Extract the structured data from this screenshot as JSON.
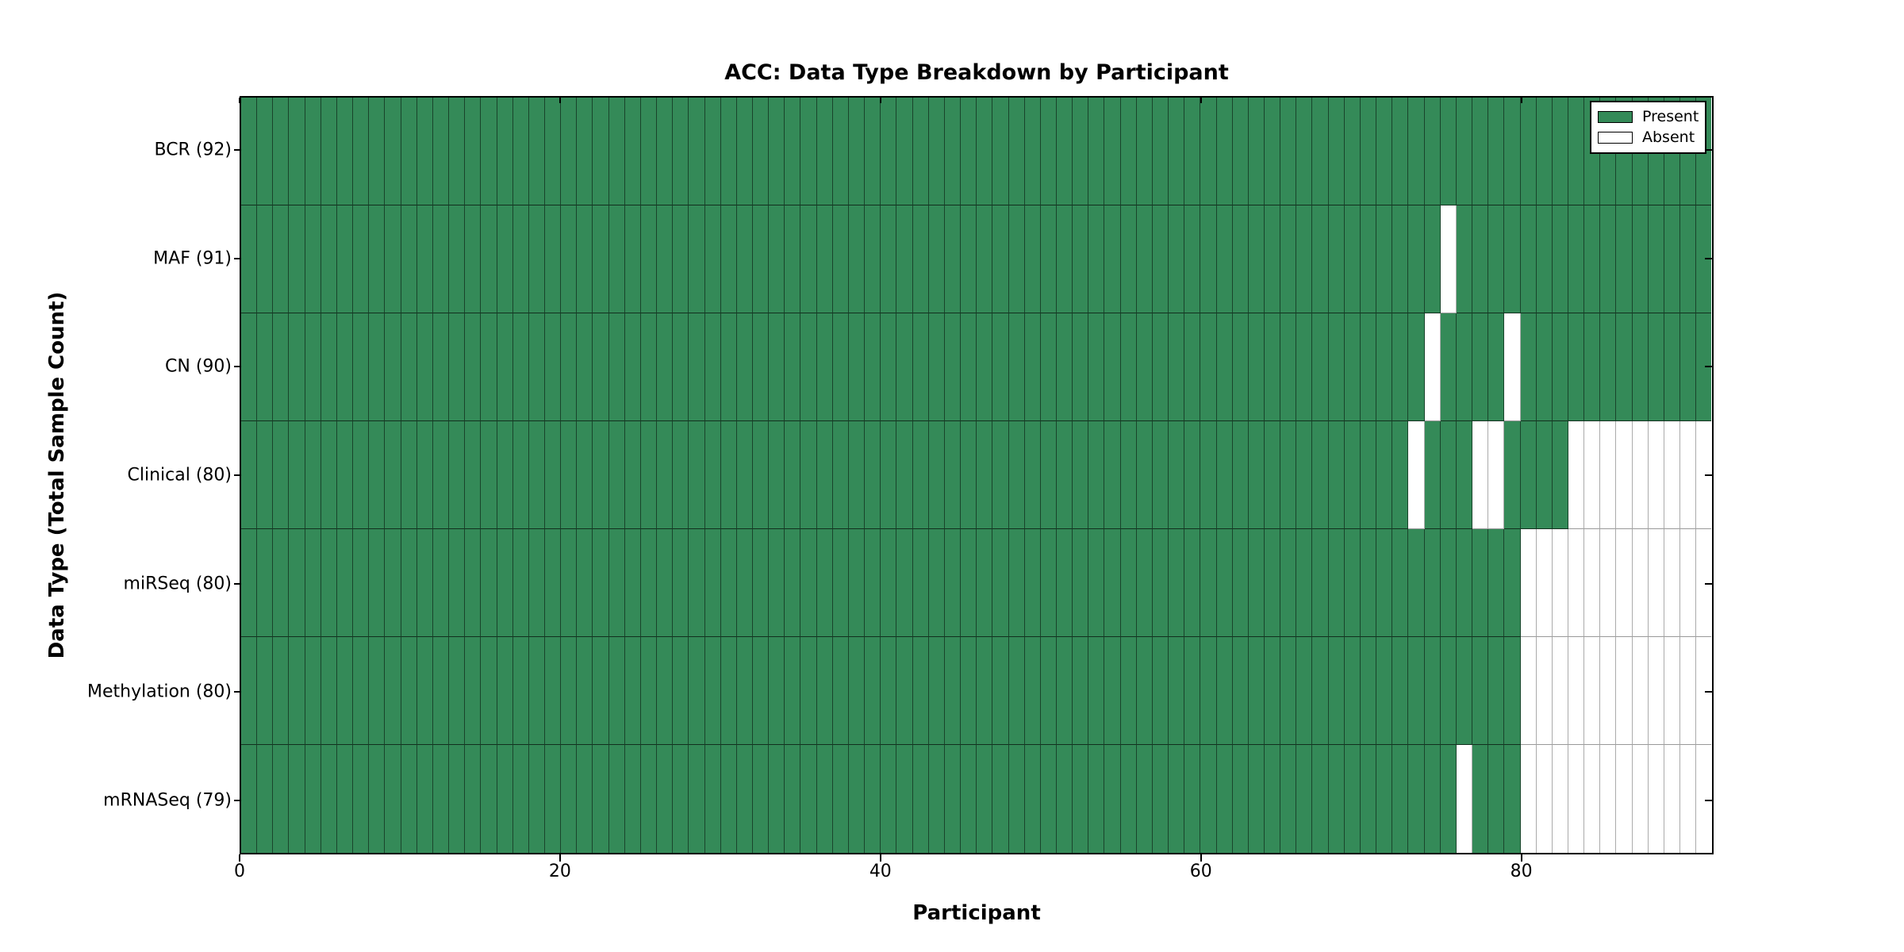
{
  "title": "ACC: Data Type Breakdown by Participant",
  "x_axis": {
    "label": "Participant",
    "tick_values": [
      0,
      20,
      40,
      60,
      80
    ],
    "tick_labels": [
      "0",
      "20",
      "40",
      "60",
      "80"
    ]
  },
  "y_axis": {
    "label": "Data Type (Total Sample Count)"
  },
  "legend": {
    "items": [
      {
        "label": "Present",
        "state": "present"
      },
      {
        "label": "Absent",
        "state": "absent"
      }
    ]
  },
  "colors": {
    "present": "#348A58",
    "absent": "#FFFFFF",
    "grid_on_present": "rgba(0,0,0,0.50)",
    "grid_on_absent": "#ABABAB",
    "row_sep_on_present": "rgba(0,0,0,0.65)",
    "row_sep_on_absent": "#999999",
    "spine": "#000000"
  },
  "chart_data": {
    "type": "heatmap",
    "title": "ACC: Data Type Breakdown by Participant",
    "xlabel": "Participant",
    "ylabel": "Data Type (Total Sample Count)",
    "x_range": [
      0,
      92
    ],
    "x_ticks": [
      0,
      20,
      40,
      60,
      80
    ],
    "n_participants": 92,
    "cell_states": [
      "present",
      "absent"
    ],
    "legend_position": "upper right",
    "rows": [
      {
        "label": "BCR (92)",
        "name": "BCR",
        "total_samples": 92,
        "absent_participants": []
      },
      {
        "label": "MAF (91)",
        "name": "MAF",
        "total_samples": 91,
        "absent_participants": [
          75
        ]
      },
      {
        "label": "CN (90)",
        "name": "CN",
        "total_samples": 90,
        "absent_participants": [
          74,
          79
        ]
      },
      {
        "label": "Clinical (80)",
        "name": "Clinical",
        "total_samples": 80,
        "absent_participants": [
          73,
          77,
          78,
          83,
          84,
          85,
          86,
          87,
          88,
          89,
          90,
          91
        ]
      },
      {
        "label": "miRSeq (80)",
        "name": "miRSeq",
        "total_samples": 80,
        "absent_participants": [
          80,
          81,
          82,
          83,
          84,
          85,
          86,
          87,
          88,
          89,
          90,
          91
        ]
      },
      {
        "label": "Methylation (80)",
        "name": "Methylation",
        "total_samples": 80,
        "absent_participants": [
          80,
          81,
          82,
          83,
          84,
          85,
          86,
          87,
          88,
          89,
          90,
          91
        ]
      },
      {
        "label": "mRNASeq (79)",
        "name": "mRNASeq",
        "total_samples": 79,
        "absent_participants": [
          76,
          80,
          81,
          82,
          83,
          84,
          85,
          86,
          87,
          88,
          89,
          90,
          91
        ]
      }
    ]
  }
}
